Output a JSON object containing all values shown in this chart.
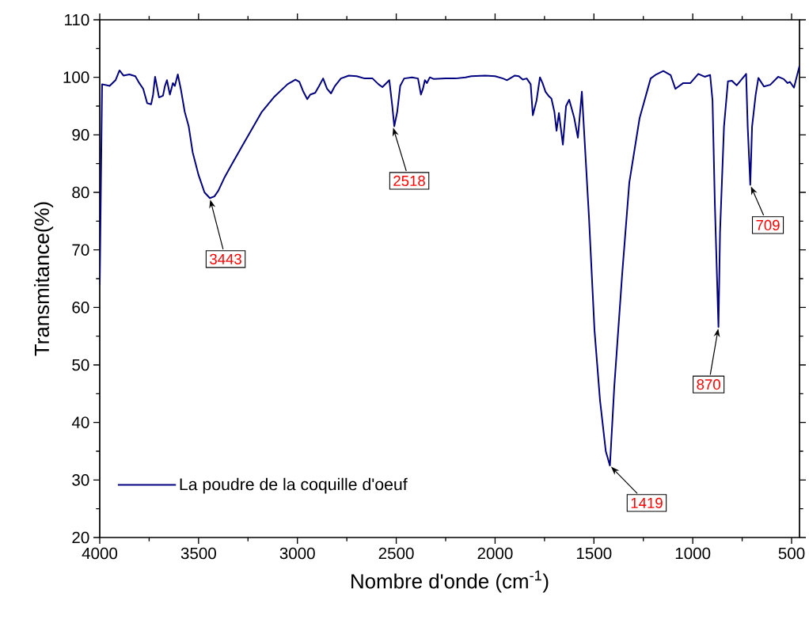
{
  "chart_data": {
    "type": "line",
    "xlabel": "Nombre d'onde (cm$^{-1}$)",
    "ylabel": "Transmitance(%)",
    "xlim": [
      4000,
      460
    ],
    "ylim": [
      20,
      110
    ],
    "xticks": [
      4000,
      3500,
      3000,
      2500,
      2000,
      1500,
      1000,
      500
    ],
    "yticks": [
      20,
      30,
      40,
      50,
      60,
      70,
      80,
      90,
      100,
      110
    ],
    "grid": false,
    "legend": "bottom left",
    "marker": "none",
    "line_style": "solid",
    "series": [
      {
        "name": "La poudre de la coquille d'oeuf",
        "color": "#000080",
        "x": [
          4000,
          3988,
          3950,
          3920,
          3900,
          3880,
          3850,
          3820,
          3800,
          3780,
          3760,
          3740,
          3730,
          3720,
          3700,
          3680,
          3670,
          3660,
          3645,
          3630,
          3620,
          3605,
          3590,
          3570,
          3550,
          3530,
          3500,
          3470,
          3443,
          3420,
          3400,
          3370,
          3330,
          3280,
          3230,
          3180,
          3120,
          3050,
          3010,
          2990,
          2970,
          2950,
          2935,
          2910,
          2890,
          2870,
          2850,
          2830,
          2810,
          2780,
          2740,
          2700,
          2660,
          2620,
          2590,
          2570,
          2550,
          2535,
          2520,
          2510,
          2495,
          2480,
          2460,
          2420,
          2390,
          2375,
          2365,
          2355,
          2345,
          2330,
          2310,
          2250,
          2200,
          2150,
          2120,
          2050,
          2000,
          1960,
          1940,
          1900,
          1880,
          1860,
          1840,
          1820,
          1809,
          1790,
          1773,
          1760,
          1745,
          1730,
          1715,
          1700,
          1689,
          1677,
          1657,
          1641,
          1625,
          1600,
          1581,
          1561,
          1525,
          1497,
          1469,
          1440,
          1419,
          1397,
          1357,
          1321,
          1269,
          1213,
          1185,
          1149,
          1112,
          1088,
          1048,
          1012,
          972,
          940,
          912,
          900,
          888,
          870,
          862,
          842,
          822,
          802,
          778,
          730,
          722,
          715,
          709,
          700,
          682,
          668,
          640,
          608,
          568,
          540,
          520,
          508,
          488,
          460
        ],
        "values": [
          63.9,
          98.8,
          98.5,
          99.5,
          101.2,
          100.3,
          100.5,
          100.2,
          99,
          98,
          95.5,
          95.3,
          97,
          100.1,
          96.5,
          96.8,
          98.5,
          99.5,
          97,
          99,
          98.5,
          100.5,
          98,
          94,
          91.5,
          87,
          83,
          80,
          79,
          79.3,
          80.3,
          82.5,
          85,
          88,
          91,
          94,
          96.5,
          98.8,
          99.6,
          99.2,
          97.5,
          96.2,
          97,
          97.3,
          98.5,
          99.8,
          98,
          97.2,
          98.5,
          99.8,
          100.3,
          100.2,
          99.8,
          99.8,
          98.8,
          98.3,
          99,
          99.5,
          95,
          91.5,
          94,
          98.5,
          99.8,
          100,
          99.8,
          97,
          98,
          99.5,
          99,
          100,
          99.7,
          99.8,
          99.8,
          100,
          100.2,
          100.3,
          100.2,
          99.8,
          99.5,
          100.3,
          100.2,
          99.6,
          99.8,
          98.8,
          93.4,
          96,
          100,
          99,
          97.5,
          96.8,
          96.3,
          94,
          90.7,
          93.8,
          88.3,
          95,
          96.1,
          93,
          89.5,
          97.5,
          75.7,
          56,
          43.8,
          35,
          32.5,
          46.2,
          65.8,
          81.7,
          92.9,
          99.8,
          100.5,
          101.1,
          100.4,
          98,
          99,
          99,
          100.6,
          100.1,
          100.4,
          96,
          77.7,
          56.6,
          73.1,
          91.4,
          99.3,
          99.4,
          98.6,
          100.6,
          91.4,
          86,
          81.3,
          91.4,
          96.9,
          99.9,
          98.4,
          98.7,
          100.1,
          99.7,
          99,
          99.2,
          98.2,
          102
        ]
      }
    ],
    "annotations": [
      {
        "text": "3443",
        "x": 3443,
        "y": 79
      },
      {
        "text": "2518",
        "x": 2518,
        "y": 91.5
      },
      {
        "text": "1419",
        "x": 1419,
        "y": 32.5
      },
      {
        "text": "870",
        "x": 870,
        "y": 56.6
      },
      {
        "text": "709",
        "x": 709,
        "y": 81.3
      }
    ]
  }
}
